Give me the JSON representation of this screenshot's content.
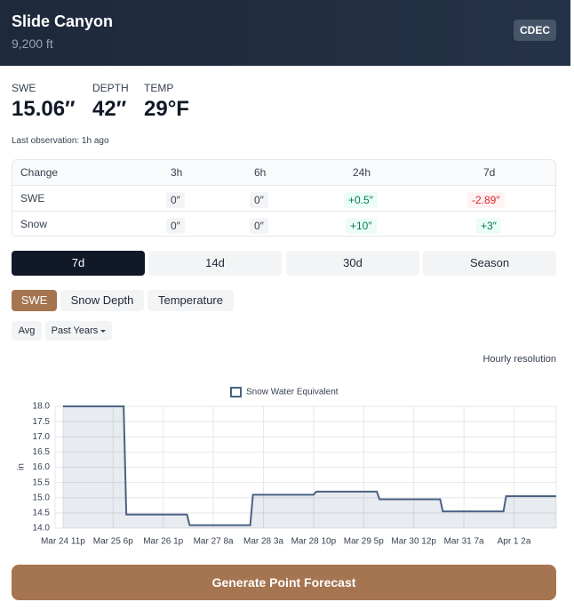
{
  "header": {
    "title": "Slide Canyon",
    "elevation": "9,200 ft",
    "badge": "CDEC"
  },
  "stats": [
    {
      "label": "SWE",
      "value": "15.06″"
    },
    {
      "label": "DEPTH",
      "value": "42″"
    },
    {
      "label": "TEMP",
      "value": "29°F"
    }
  ],
  "last_observation": "Last observation: 1h ago",
  "table": {
    "header": [
      "Change",
      "3h",
      "6h",
      "24h",
      "7d"
    ],
    "rows": [
      [
        "SWE",
        "0″",
        "0″",
        "+0.5″",
        "-2.89″"
      ],
      [
        "Snow",
        "0″",
        "0″",
        "+10″",
        "+3″"
      ]
    ]
  },
  "range_tabs": [
    "7d",
    "14d",
    "30d",
    "Season"
  ],
  "metric_tabs": [
    "SWE",
    "Snow Depth",
    "Temperature"
  ],
  "options": [
    "Avg",
    "Past Years"
  ],
  "resolution": "Hourly resolution",
  "button": "Generate Point Forecast",
  "chart_data": {
    "type": "line",
    "ylabel": "in",
    "series": [
      {
        "name": "Snow Water Equivalent",
        "color": "#4b6283",
        "x": [
          "Mar 24 11p",
          "Mar 25 10p",
          "Mar 25 11p",
          "Mar 26 10p",
          "Mar 26 11p",
          "Mar 27 10p",
          "Mar 27 11p",
          "Mar 28 10p",
          "Mar 28 11p",
          "Mar 29 10p",
          "Mar 29 11p",
          "Mar 30 10p",
          "Mar 30 11p",
          "Mar 31 10p",
          "Mar 31 11p",
          "Apr 1 6p"
        ],
        "values": [
          18.0,
          18.0,
          14.45,
          14.45,
          14.1,
          14.1,
          15.1,
          15.1,
          15.2,
          15.2,
          14.95,
          14.95,
          14.55,
          14.55,
          15.05,
          15.05
        ]
      }
    ],
    "xlim": [
      "Mar 24 8p",
      "Apr 1 6p"
    ],
    "xticks": [
      "Mar 24 11p",
      "Mar 25 6p",
      "Mar 26 1p",
      "Mar 27 8a",
      "Mar 28 3a",
      "Mar 28 10p",
      "Mar 29 5p",
      "Mar 30 12p",
      "Mar 31 7a",
      "Apr 1 2a"
    ],
    "ylim": [
      14,
      18
    ],
    "yticks": [
      {
        "value": 14,
        "label": "14.0"
      },
      14.5,
      {
        "value": 15,
        "label": "15.0"
      },
      15.5,
      {
        "value": 16,
        "label": "16.0"
      },
      16.5,
      {
        "value": 17,
        "label": "17.0"
      },
      17.5,
      {
        "value": 18,
        "label": "18.0"
      }
    ],
    "grid": true,
    "legend": "top"
  }
}
